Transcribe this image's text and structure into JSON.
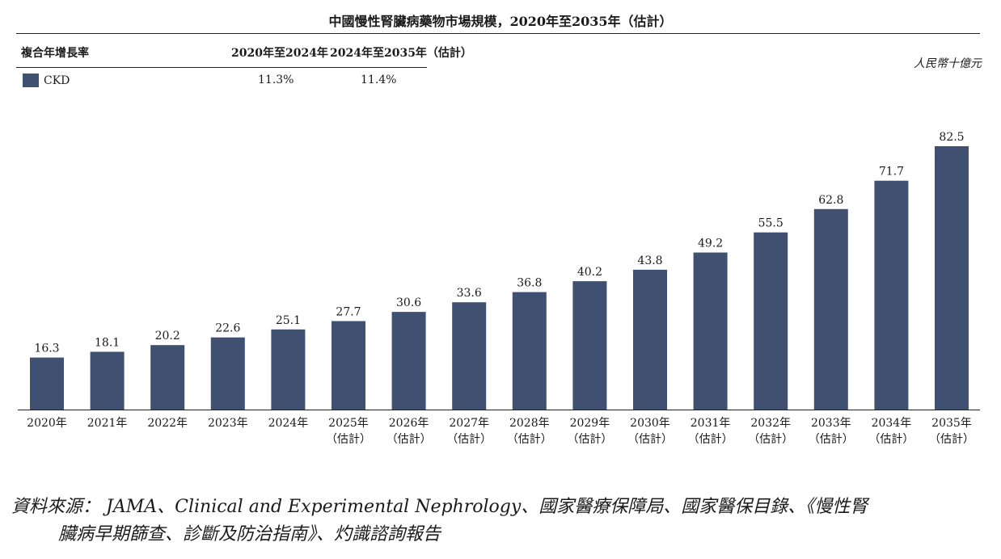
{
  "title": "中國慢性腎臟病藥物市場規模，2020年至2035年（估計）",
  "cagr_table": {
    "header": "複合年增長率",
    "period1": "2020年至2024年",
    "period2": "2024年至2035年（估計）",
    "rows": [
      {
        "name": "CKD",
        "value1": "11.3%",
        "value2": "11.4%",
        "color": "#3f5070"
      }
    ]
  },
  "unit": "人民幣十億元",
  "chart_data": {
    "type": "bar",
    "title": "中國慢性腎臟病藥物市場規模，2020年至2035年（估計）",
    "series": [
      {
        "name": "CKD",
        "color": "#3f5070",
        "values": [
          16.3,
          18.1,
          20.2,
          22.6,
          25.1,
          27.7,
          30.6,
          33.6,
          36.8,
          40.2,
          43.8,
          49.2,
          55.5,
          62.8,
          71.7,
          82.5
        ]
      }
    ],
    "categories": [
      "2020年",
      "2021年",
      "2022年",
      "2023年",
      "2024年",
      "2025年",
      "2026年",
      "2027年",
      "2028年",
      "2029年",
      "2030年",
      "2031年",
      "2032年",
      "2033年",
      "2034年",
      "2035年"
    ],
    "category_notes": [
      "",
      "",
      "",
      "",
      "",
      "（估計）",
      "（估計）",
      "（估計）",
      "（估計）",
      "（估計）",
      "（估計）",
      "（估計）",
      "（估計）",
      "（估計）",
      "（估計）",
      "（估計）"
    ],
    "ylim": [
      0,
      82.5
    ],
    "grid": false,
    "legend": "top-left"
  },
  "source": {
    "line1": "資料來源： JAMA、Clinical and Experimental Nephrology、國家醫療保障局、國家醫保目錄、《慢性腎",
    "line2": "臟病早期篩查、診斷及防治指南》、灼識諮詢報告"
  }
}
